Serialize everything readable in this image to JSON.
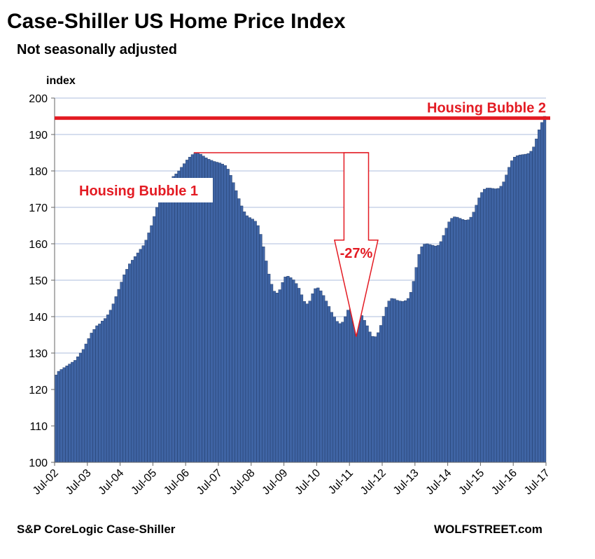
{
  "chart_data": {
    "type": "bar",
    "title": "Case-Shiller US Home Price Index",
    "subtitle": "Not seasonally adjusted",
    "ylabel": "index",
    "ylim": [
      100,
      200
    ],
    "yticks": [
      100,
      110,
      120,
      130,
      140,
      150,
      160,
      170,
      180,
      190,
      200
    ],
    "x_labels": [
      "Jul-02",
      "Jul-03",
      "Jul-04",
      "Jul-05",
      "Jul-06",
      "Jul-07",
      "Jul-08",
      "Jul-09",
      "Jul-10",
      "Jul-11",
      "Jul-12",
      "Jul-13",
      "Jul-14",
      "Jul-15",
      "Jul-16",
      "Jul-17"
    ],
    "x_start": "Jul-02",
    "frequency": "monthly",
    "values": [
      124.0,
      125.0,
      125.5,
      126.0,
      126.5,
      127.0,
      127.5,
      128.0,
      129.0,
      130.0,
      131.0,
      132.5,
      134.0,
      135.5,
      136.5,
      137.5,
      138.0,
      138.8,
      139.5,
      140.5,
      141.8,
      143.5,
      145.5,
      147.5,
      149.5,
      151.5,
      153.0,
      154.5,
      155.5,
      156.5,
      157.5,
      158.5,
      159.5,
      161.0,
      163.0,
      165.0,
      167.5,
      170.0,
      172.5,
      174.5,
      176.0,
      177.0,
      177.8,
      178.5,
      179.2,
      180.0,
      181.0,
      182.0,
      183.0,
      183.8,
      184.5,
      185.0,
      184.9,
      184.6,
      184.1,
      183.6,
      183.2,
      182.9,
      182.6,
      182.4,
      182.2,
      181.9,
      181.5,
      180.5,
      178.8,
      176.8,
      174.6,
      172.4,
      170.4,
      168.8,
      167.7,
      167.2,
      166.8,
      166.2,
      165.0,
      162.6,
      159.2,
      155.3,
      151.7,
      148.9,
      147.0,
      146.5,
      147.4,
      149.4,
      150.9,
      151.1,
      150.7,
      150.1,
      149.1,
      147.8,
      146.0,
      144.2,
      143.5,
      144.3,
      146.3,
      147.7,
      147.9,
      147.1,
      145.8,
      144.3,
      142.8,
      141.2,
      139.9,
      138.7,
      138.1,
      138.5,
      140.0,
      141.8,
      142.7,
      142.7,
      142.2,
      141.3,
      140.3,
      139.0,
      137.5,
      135.8,
      134.6,
      134.5,
      135.6,
      137.6,
      140.1,
      142.6,
      144.3,
      145.0,
      144.9,
      144.5,
      144.3,
      144.2,
      144.4,
      145.0,
      146.7,
      149.7,
      153.5,
      157.1,
      159.2,
      159.9,
      160.0,
      159.8,
      159.6,
      159.4,
      159.6,
      160.6,
      162.3,
      164.3,
      166.0,
      167.0,
      167.4,
      167.3,
      167.0,
      166.7,
      166.5,
      166.6,
      167.3,
      168.7,
      170.6,
      172.6,
      174.1,
      175.0,
      175.3,
      175.3,
      175.2,
      175.1,
      175.2,
      175.8,
      177.0,
      178.9,
      181.0,
      182.8,
      183.8,
      184.2,
      184.4,
      184.5,
      184.6,
      184.8,
      185.4,
      186.6,
      188.8,
      191.3,
      193.3,
      195.0
    ],
    "reference_line": {
      "value": 194.5,
      "label": "Housing Bubble 2",
      "color": "#e31b23"
    },
    "annotations": {
      "bubble1_label": "Housing Bubble 1",
      "decline_label": "-27%",
      "decline_from": 185.0,
      "decline_to": 134.5
    },
    "colors": {
      "bar": "#3f64a4",
      "bar_edge": "#1d3560",
      "grid": "#c8d4e8",
      "accent": "#e31b23"
    }
  },
  "footer": {
    "source": "S&P CoreLogic Case-Shiller",
    "brand": "WOLFSTREET.com"
  }
}
